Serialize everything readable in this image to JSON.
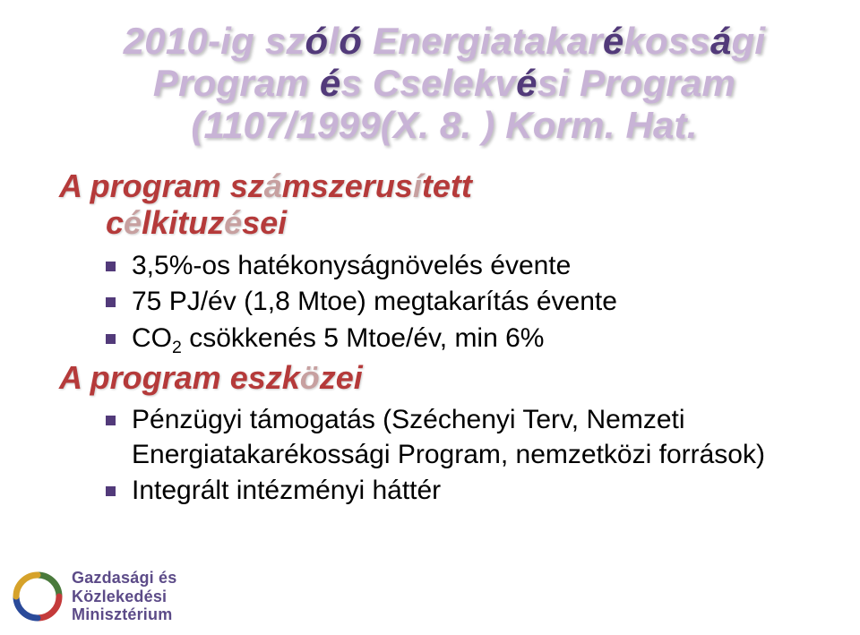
{
  "background": "#ffffff",
  "title": {
    "lines": [
      {
        "pre": "2010-ig sz",
        "em1": "ó",
        "mid1": "l",
        "em2": "ó",
        " mid2": " Energiatakar",
        "em3": "é",
        "mid3": "koss",
        "em4": "á",
        "tail": "gi"
      },
      {
        "pre": "Program ",
        "em1": "é",
        "mid1": "s Cselekv",
        "em2": "é",
        "tail": "si Program"
      },
      {
        "pre": "(1107/1999(X. 8. ) Korm. Hat."
      }
    ]
  },
  "sections": [
    {
      "heading_main": "A program sz",
      "heading_sh": "á",
      "heading_main2": "mszerus",
      "heading_sh2": "í",
      "heading_main3": "tett",
      "heading_line2_indent": 52,
      "heading_line2_main": "c",
      "heading_line2_sh": "é",
      "heading_line2_main2": "lkituz",
      "heading_line2_sh2": "é",
      "heading_line2_main3": "sei",
      "bullets": [
        {
          "html": "3,5%-os hatékonyságnövelés évente"
        },
        {
          "html": "75 PJ/év (1,8 Mtoe) megtakarítás évente"
        },
        {
          "html": "CO<sub>2</sub> csökkenés 5 Mtoe/év, min 6%"
        }
      ]
    },
    {
      "heading_main": "A program eszk",
      "heading_sh": "ö",
      "heading_main2": "zei",
      "bullets": [
        {
          "html": "Pénzügyi támogatás (Széchenyi Terv, Nemzeti Energiatakarékossági Program, nemzetközi források)"
        },
        {
          "html": "Integrált intézményi háttér"
        }
      ]
    }
  ],
  "footer": {
    "line1": "Gazdasági és",
    "line2": "Közlekedési",
    "line3": "Minisztérium",
    "text_color": "#5c4b88"
  },
  "colors": {
    "title_light": "#c8b3d6",
    "title_em": "#523a7a",
    "heading": "#b53a3a",
    "heading_sh": "#c7a0a0",
    "bullet_text": "#000000",
    "bullet_square": "#523a7a"
  },
  "fonts": {
    "title_size": 42,
    "heading_size": 36,
    "bullet_size": 30,
    "footer_size": 18
  }
}
